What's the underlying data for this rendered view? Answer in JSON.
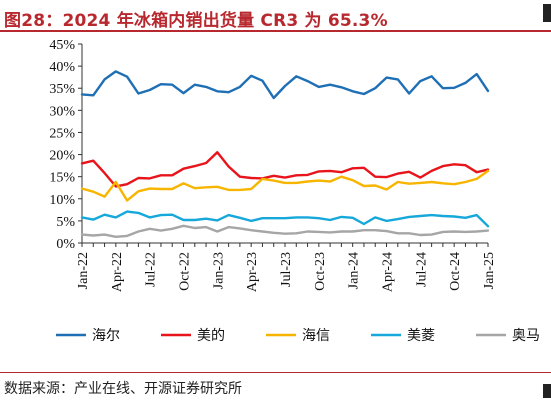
{
  "figure": {
    "title": "图28：2024 年冰箱内销出货量 CR3 为 65.3%",
    "source": "数据来源：产业在线、开源证券研究所"
  },
  "chart_data": {
    "type": "line",
    "x": [
      "Jan-22",
      "Feb-22",
      "Mar-22",
      "Apr-22",
      "May-22",
      "Jun-22",
      "Jul-22",
      "Aug-22",
      "Sep-22",
      "Oct-22",
      "Nov-22",
      "Dec-22",
      "Jan-23",
      "Feb-23",
      "Mar-23",
      "Apr-23",
      "May-23",
      "Jun-23",
      "Jul-23",
      "Aug-23",
      "Sep-23",
      "Oct-23",
      "Nov-23",
      "Dec-23",
      "Jan-24",
      "Feb-24",
      "Mar-24",
      "Apr-24",
      "May-24",
      "Jun-24",
      "Jul-24",
      "Aug-24",
      "Sep-24",
      "Oct-24",
      "Nov-24",
      "Dec-24",
      "Jan-25"
    ],
    "x_tick_labels": [
      "Jan-22",
      "Apr-22",
      "Jul-22",
      "Oct-22",
      "Jan-23",
      "Apr-23",
      "Jul-23",
      "Oct-23",
      "Jan-24",
      "Apr-24",
      "Jul-24",
      "Oct-24",
      "Jan-25"
    ],
    "x_tick_every": 3,
    "ylim": [
      0,
      45
    ],
    "y_ticks": [
      "0%",
      "5%",
      "10%",
      "15%",
      "20%",
      "25%",
      "30%",
      "35%",
      "40%",
      "45%"
    ],
    "y_unit": "%",
    "grid": false,
    "legend_position": "bottom",
    "series": [
      {
        "name": "海尔",
        "color": "#1f6fb5",
        "values": [
          33.6,
          33.4,
          37.0,
          38.8,
          37.6,
          33.8,
          34.6,
          35.9,
          35.8,
          33.9,
          35.8,
          35.3,
          34.3,
          34.1,
          35.3,
          37.8,
          36.7,
          32.8,
          35.5,
          37.7,
          36.6,
          35.3,
          35.8,
          35.2,
          34.3,
          33.7,
          35.0,
          37.4,
          37.0,
          33.8,
          36.6,
          37.7,
          35.0,
          35.1,
          36.2,
          38.2,
          34.4
        ]
      },
      {
        "name": "美的",
        "color": "#e8141b",
        "values": [
          18.0,
          18.6,
          15.8,
          12.8,
          13.3,
          14.7,
          14.6,
          15.3,
          15.3,
          16.8,
          17.4,
          18.1,
          20.5,
          17.3,
          15.0,
          14.7,
          14.6,
          15.2,
          14.8,
          15.3,
          15.4,
          16.2,
          16.3,
          16.0,
          16.9,
          17.0,
          15.0,
          14.9,
          15.7,
          16.1,
          14.8,
          16.3,
          17.4,
          17.8,
          17.6,
          16.0,
          16.6
        ]
      },
      {
        "name": "海信",
        "color": "#f7b500",
        "values": [
          12.3,
          11.6,
          10.5,
          13.8,
          9.6,
          11.7,
          12.3,
          12.2,
          12.2,
          13.5,
          12.4,
          12.6,
          12.7,
          12.0,
          12.0,
          12.2,
          14.5,
          14.1,
          13.6,
          13.6,
          13.9,
          14.1,
          13.9,
          15.0,
          14.2,
          12.9,
          13.0,
          12.1,
          13.8,
          13.4,
          13.6,
          13.8,
          13.5,
          13.3,
          13.8,
          14.5,
          16.3
        ]
      },
      {
        "name": "美菱",
        "color": "#17a8db",
        "values": [
          5.8,
          5.3,
          6.4,
          5.8,
          7.1,
          6.8,
          5.8,
          6.3,
          6.4,
          5.2,
          5.2,
          5.5,
          5.1,
          6.3,
          5.7,
          5.0,
          5.6,
          5.6,
          5.6,
          5.8,
          5.8,
          5.6,
          5.2,
          5.9,
          5.7,
          4.3,
          5.8,
          5.0,
          5.4,
          5.9,
          6.1,
          6.3,
          6.1,
          6.0,
          5.7,
          6.3,
          3.8
        ]
      },
      {
        "name": "奥马",
        "color": "#a6a6a6",
        "values": [
          1.9,
          1.7,
          1.9,
          1.4,
          1.6,
          2.6,
          3.2,
          2.8,
          3.2,
          3.9,
          3.4,
          3.6,
          2.6,
          3.6,
          3.3,
          2.9,
          2.6,
          2.3,
          2.1,
          2.2,
          2.6,
          2.5,
          2.4,
          2.6,
          2.6,
          2.9,
          2.9,
          2.7,
          2.2,
          2.2,
          1.8,
          1.9,
          2.5,
          2.6,
          2.5,
          2.6,
          2.8
        ]
      }
    ]
  }
}
